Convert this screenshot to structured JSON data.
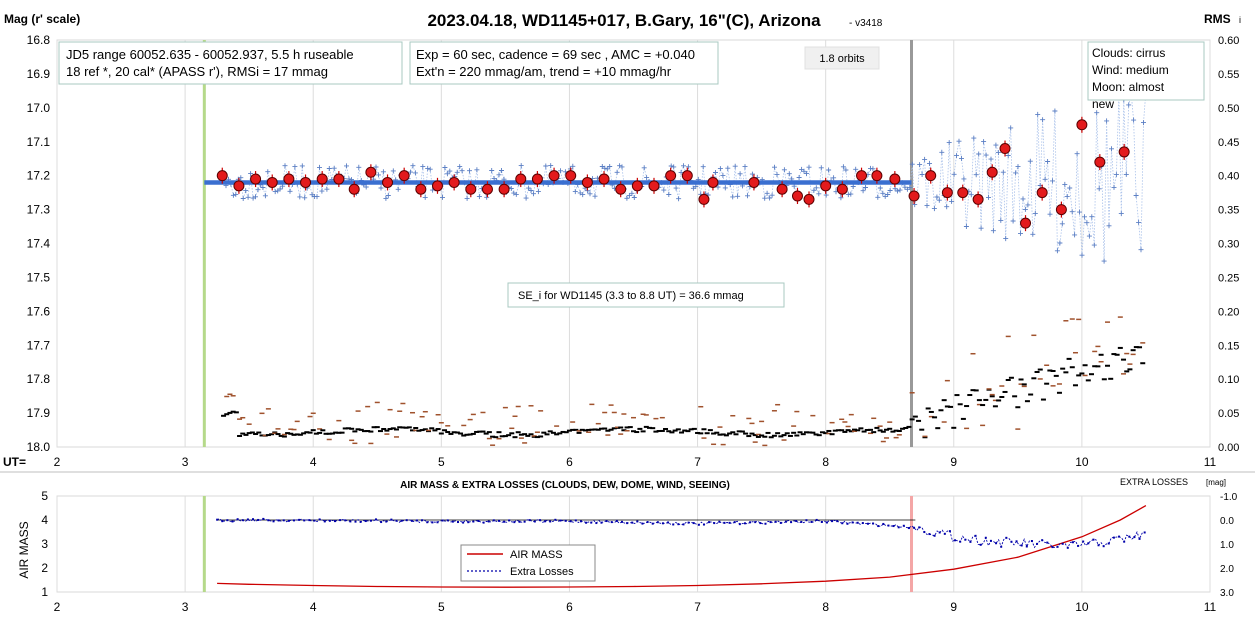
{
  "header": {
    "title": "2023.04.18, WD1145+017, B.Gary, 16\"(C), Arizona",
    "version": "- v3418",
    "left_axis_label": "Mag (r' scale)",
    "right_axis_label": "RMS",
    "right_axis_suffix": "i"
  },
  "boxes": {
    "info1_line1": "JD5 range 60052.635 - 60052.937, 5.5 h ruseable",
    "info1_line2": "18 ref *, 20 cal*  (APASS r'), RMSi = 17 mmag",
    "info2_line1": "Exp = 60 sec, cadence = 69 sec , AMC = +0.040",
    "info2_line2": "Ext'n = 220 mmag/am, trend = +10 mmag/hr",
    "orbits": "1.8 orbits",
    "weather_line1": "Clouds: cirrus",
    "weather_line2": "Wind:   medium",
    "weather_line3": "Moon:   almost",
    "weather_line4": "new",
    "se_note": "SE_i for WD1145 (3.3 to 8.8 UT) = 36.6 mmag"
  },
  "lower_panel": {
    "title": "AIR MASS & EXTRA LOSSES (CLOUDS, DEW, DOME, WIND, SEEING)",
    "right_title": "EXTRA LOSSES",
    "right_title_unit": "[mag]",
    "ylabel": "AIR MASS",
    "legend_airmass": "AIR MASS",
    "legend_losses": "Extra Losses"
  },
  "colors": {
    "raw_points": "#5b7fc4",
    "binned_fill": "#e31a1c",
    "binned_stroke": "#5a0000",
    "model_line": "#3a6fd0",
    "rms_black": "#000000",
    "rms_brown": "#a0522d",
    "airmass_line": "#cc0000",
    "losses_line": "#0000aa",
    "ingress_marker": "#b5d98a",
    "egress_marker_top": "#999999",
    "egress_marker_bottom": "#f4a6a6"
  },
  "chart_data": [
    {
      "type": "scatter",
      "title": "2023.04.18, WD1145+017, B.Gary, 16\"(C), Arizona",
      "xlabel": "UT=",
      "ylabel": "Mag (r' scale)",
      "y2label": "RMS",
      "xlim": [
        2,
        11
      ],
      "ylim": [
        16.8,
        18.0
      ],
      "y_inverted": true,
      "y2lim": [
        0.0,
        0.6
      ],
      "x_ticks": [
        "2",
        "3",
        "4",
        "5",
        "6",
        "7",
        "8",
        "9",
        "10",
        "11"
      ],
      "y_ticks": [
        "16.8",
        "16.9",
        "17.0",
        "17.1",
        "17.2",
        "17.3",
        "17.4",
        "17.5",
        "17.6",
        "17.7",
        "17.8",
        "17.9",
        "18.0"
      ],
      "y2_ticks": [
        "0.00",
        "0.05",
        "0.10",
        "0.15",
        "0.20",
        "0.25",
        "0.30",
        "0.35",
        "0.40",
        "0.45",
        "0.50",
        "0.55",
        "0.60"
      ],
      "vertical_markers": {
        "ingress_ut": 3.15,
        "egress_ut": 8.67
      },
      "model_line": {
        "x": [
          3.15,
          8.67
        ],
        "y": [
          17.22,
          17.22
        ]
      },
      "binned": {
        "x": [
          3.29,
          3.42,
          3.55,
          3.68,
          3.81,
          3.94,
          4.07,
          4.2,
          4.32,
          4.45,
          4.58,
          4.71,
          4.84,
          4.97,
          5.1,
          5.23,
          5.36,
          5.49,
          5.62,
          5.75,
          5.88,
          6.01,
          6.14,
          6.27,
          6.4,
          6.53,
          6.66,
          6.79,
          6.92,
          7.05,
          7.12,
          7.44,
          7.66,
          7.78,
          7.87,
          8.0,
          8.13,
          8.28,
          8.4,
          8.54,
          8.69,
          8.82,
          8.95,
          9.07,
          9.19,
          9.3,
          9.4,
          9.56,
          9.69,
          9.84,
          10.0,
          10.14,
          10.33
        ],
        "y": [
          17.2,
          17.23,
          17.21,
          17.22,
          17.21,
          17.22,
          17.21,
          17.21,
          17.24,
          17.19,
          17.22,
          17.2,
          17.24,
          17.23,
          17.22,
          17.24,
          17.24,
          17.24,
          17.21,
          17.21,
          17.2,
          17.2,
          17.22,
          17.21,
          17.24,
          17.23,
          17.23,
          17.2,
          17.2,
          17.27,
          17.22,
          17.22,
          17.24,
          17.26,
          17.27,
          17.23,
          17.24,
          17.2,
          17.2,
          17.21,
          17.26,
          17.2,
          17.25,
          17.25,
          17.27,
          17.19,
          17.12,
          17.34,
          17.25,
          17.3,
          17.05,
          17.16,
          17.13
        ]
      },
      "raw_note": "Dense unbinned points (~290) scatter ±0.05 mag about 17.22 from 3.3 to 8.6 UT, then up to ±0.3 mag after 8.7 UT."
    },
    {
      "type": "line",
      "title": "AIR MASS & EXTRA LOSSES (CLOUDS, DEW, DOME, WIND, SEEING)",
      "xlim": [
        2,
        11
      ],
      "ylim": [
        1,
        5
      ],
      "y2lim": [
        -1.0,
        3.0
      ],
      "y2_inverted": true,
      "x_ticks": [
        "2",
        "3",
        "4",
        "5",
        "6",
        "7",
        "8",
        "9",
        "10",
        "11"
      ],
      "y_ticks": [
        "1",
        "2",
        "3",
        "4",
        "5"
      ],
      "y2_ticks": [
        "-1.0",
        "0.0",
        "1.0",
        "2.0",
        "3.0"
      ],
      "series": [
        {
          "name": "AIR MASS",
          "x": [
            3.25,
            3.5,
            4.0,
            4.5,
            5.0,
            5.5,
            6.0,
            6.5,
            7.0,
            7.5,
            8.0,
            8.5,
            9.0,
            9.5,
            10.0,
            10.3,
            10.5
          ],
          "y": [
            1.36,
            1.32,
            1.27,
            1.23,
            1.21,
            1.2,
            1.21,
            1.23,
            1.27,
            1.34,
            1.45,
            1.62,
            1.95,
            2.45,
            3.3,
            4.0,
            4.6
          ]
        },
        {
          "name": "Extra Losses",
          "x": [
            3.25,
            4.0,
            5.0,
            6.0,
            7.0,
            8.0,
            8.7,
            9.0,
            9.3,
            9.6,
            9.9,
            10.2,
            10.5
          ],
          "y": [
            0.0,
            0.02,
            0.05,
            0.05,
            0.15,
            0.05,
            0.3,
            0.7,
            0.9,
            1.0,
            1.1,
            0.9,
            0.6
          ]
        }
      ]
    }
  ]
}
